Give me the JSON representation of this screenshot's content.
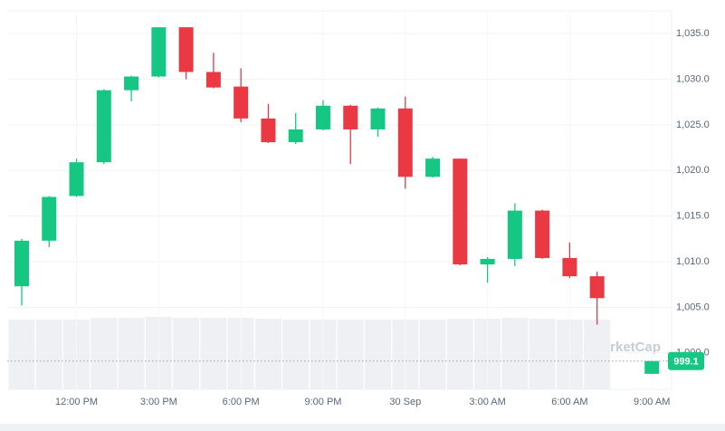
{
  "chart_data": {
    "type": "candlestick",
    "categories": [
      null,
      null,
      "12:00 PM",
      null,
      null,
      "3:00 PM",
      null,
      null,
      "6:00 PM",
      null,
      null,
      "9:00 PM",
      null,
      null,
      "30 Sep",
      null,
      null,
      "3:00 AM",
      null,
      null,
      "6:00 AM",
      null,
      null,
      "9:00 AM"
    ],
    "open": [
      1007.3,
      1012.3,
      1017.2,
      1020.9,
      1028.8,
      1030.3,
      1035.7,
      1030.8,
      1029.2,
      1025.7,
      1023.1,
      1024.5,
      1027.1,
      1024.5,
      1026.8,
      1019.3,
      1021.3,
      1009.7,
      1010.3,
      1015.6,
      1010.4,
      1008.4,
      null,
      997.7
    ],
    "high": [
      1012.5,
      1017.2,
      1021.3,
      1028.9,
      1030.4,
      1035.7,
      1035.7,
      1032.9,
      1031.2,
      1027.3,
      1026.3,
      1027.7,
      1027.2,
      1026.9,
      1028.1,
      1021.5,
      1021.3,
      1010.5,
      1016.4,
      1015.7,
      1012.1,
      1008.9,
      null,
      999.1
    ],
    "low": [
      1005.2,
      1011.6,
      1017.1,
      1020.7,
      1027.6,
      1030.2,
      1030.0,
      1029.0,
      1025.3,
      1023.0,
      1022.9,
      1024.4,
      1020.7,
      1023.7,
      1018.0,
      1019.2,
      1009.6,
      1007.7,
      1009.5,
      1010.3,
      1008.2,
      1003.1,
      null,
      997.7
    ],
    "close": [
      1012.3,
      1017.1,
      1020.9,
      1028.8,
      1030.3,
      1035.7,
      1030.8,
      1029.1,
      1025.7,
      1023.1,
      1024.5,
      1027.1,
      1024.5,
      1026.8,
      1019.3,
      1021.3,
      1009.7,
      1010.3,
      1015.6,
      1010.4,
      1008.4,
      1006.0,
      null,
      999.1
    ],
    "volume": [
      78,
      78,
      78,
      80,
      80,
      81,
      80,
      80,
      80,
      79,
      78,
      78,
      78,
      78,
      78,
      78,
      79,
      79,
      80,
      79,
      78,
      78,
      null,
      null
    ],
    "up_color": "#16c784",
    "down_color": "#ea3943",
    "volume_color": "#eef0f3",
    "ylim": [
      996,
      1037.5
    ],
    "yticks": [
      {
        "value": 1000,
        "label": "1,000.0"
      },
      {
        "value": 1005,
        "label": "1,005.0"
      },
      {
        "value": 1010,
        "label": "1,010.0"
      },
      {
        "value": 1015,
        "label": "1,015.0"
      },
      {
        "value": 1020,
        "label": "1,020.0"
      },
      {
        "value": 1025,
        "label": "1,025.0"
      },
      {
        "value": 1030,
        "label": "1,030.0"
      },
      {
        "value": 1035,
        "label": "1,035.0"
      }
    ],
    "grid": true,
    "current_price": 999.1,
    "watermark": "CoinMarketCap"
  }
}
